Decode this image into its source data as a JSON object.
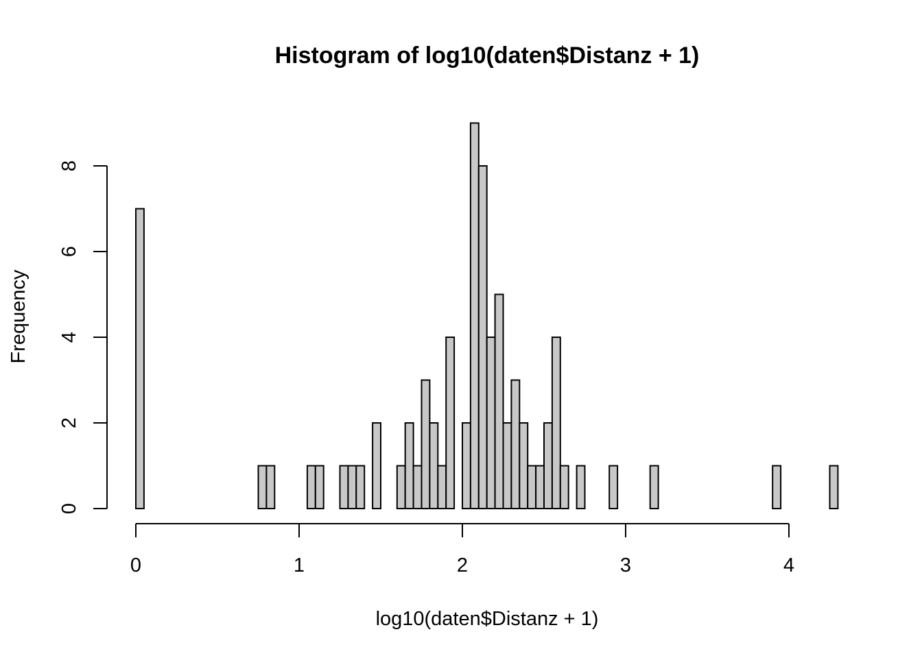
{
  "chart_data": {
    "type": "bar",
    "title": "Histogram of log10(daten$Distanz + 1)",
    "xlabel": "log10(daten$Distanz + 1)",
    "ylabel": "Frequency",
    "xlim": [
      0,
      4.3
    ],
    "ylim": [
      0,
      9
    ],
    "x_ticks": [
      0,
      1,
      2,
      3,
      4
    ],
    "y_ticks": [
      0,
      2,
      4,
      6,
      8
    ],
    "bin_width": 0.05,
    "bin_start": 0,
    "counts": [
      7,
      0,
      0,
      0,
      0,
      0,
      0,
      0,
      0,
      0,
      0,
      0,
      0,
      0,
      0,
      1,
      1,
      0,
      0,
      0,
      0,
      1,
      1,
      0,
      0,
      1,
      1,
      1,
      0,
      2,
      0,
      0,
      1,
      2,
      1,
      3,
      2,
      1,
      4,
      0,
      2,
      9,
      8,
      4,
      5,
      2,
      3,
      2,
      1,
      1,
      2,
      4,
      1,
      0,
      1,
      0,
      0,
      0,
      1,
      0,
      0,
      0,
      0,
      1,
      0,
      0,
      0,
      0,
      0,
      0,
      0,
      0,
      0,
      0,
      0,
      0,
      0,
      0,
      1,
      0,
      0,
      0,
      0,
      0,
      0,
      1
    ],
    "bar_color": "#c8c8c8",
    "grid": false,
    "legend": "none"
  }
}
